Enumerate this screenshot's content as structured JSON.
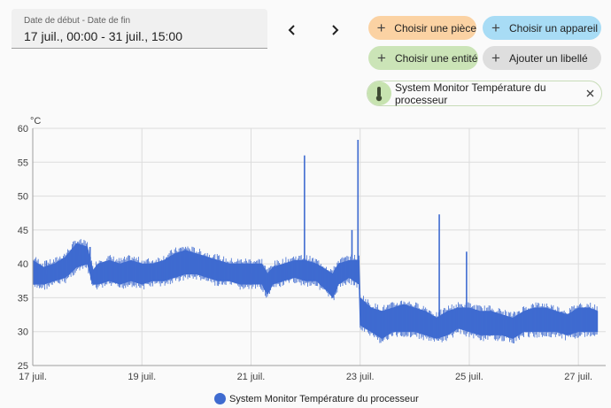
{
  "date_range": {
    "label": "Date de début - Date de fin",
    "value": "17 juil., 00:00 - 31 juil., 15:00"
  },
  "filters": {
    "area": "Choisir une pièce",
    "device": "Choisir un appareil",
    "entity": "Choisir une entité",
    "label": "Ajouter un libellé"
  },
  "selected_entity": {
    "name": "System Monitor Température du processeur",
    "icon": "thermometer-icon"
  },
  "colors": {
    "series": "#3f6bd0",
    "grid": "#dcdcdc"
  },
  "chart_data": {
    "type": "line",
    "ylabel": "°C",
    "ylim": [
      25,
      60
    ],
    "yticks": [
      25,
      30,
      35,
      40,
      45,
      50,
      55,
      60
    ],
    "xlim": [
      17,
      27.5
    ],
    "xticks": [
      {
        "value": 17,
        "label": "17 juil."
      },
      {
        "value": 19,
        "label": "19 juil."
      },
      {
        "value": 21,
        "label": "21 juil."
      },
      {
        "value": 23,
        "label": "23 juil."
      },
      {
        "value": 25,
        "label": "25 juil."
      },
      {
        "value": 27,
        "label": "27 juil."
      }
    ],
    "grid": true,
    "legend_position": "bottom-center",
    "series": [
      {
        "name": "System Monitor Température du processeur",
        "band": [
          [
            17.0,
            37.0,
            40.5
          ],
          [
            17.2,
            37.0,
            39.5
          ],
          [
            17.4,
            37.5,
            40.0
          ],
          [
            17.6,
            38.0,
            41.0
          ],
          [
            17.8,
            39.5,
            43.0
          ],
          [
            18.0,
            40.0,
            42.5
          ],
          [
            18.1,
            37.0,
            39.0
          ],
          [
            18.2,
            37.0,
            40.0
          ],
          [
            18.4,
            37.5,
            40.5
          ],
          [
            18.6,
            37.0,
            40.0
          ],
          [
            18.8,
            37.5,
            40.5
          ],
          [
            19.0,
            37.0,
            40.0
          ],
          [
            19.2,
            37.5,
            40.0
          ],
          [
            19.4,
            37.5,
            40.5
          ],
          [
            19.6,
            38.0,
            41.5
          ],
          [
            19.8,
            38.5,
            42.0
          ],
          [
            20.0,
            38.5,
            41.5
          ],
          [
            20.2,
            38.0,
            41.0
          ],
          [
            20.4,
            37.5,
            40.5
          ],
          [
            20.6,
            37.5,
            40.0
          ],
          [
            20.8,
            37.0,
            40.0
          ],
          [
            21.0,
            37.0,
            40.0
          ],
          [
            21.2,
            37.0,
            40.0
          ],
          [
            21.3,
            35.5,
            38.5
          ],
          [
            21.4,
            37.0,
            39.5
          ],
          [
            21.6,
            37.5,
            40.0
          ],
          [
            21.8,
            38.0,
            40.5
          ],
          [
            22.0,
            37.5,
            40.5
          ],
          [
            22.2,
            37.5,
            40.0
          ],
          [
            22.4,
            36.0,
            39.0
          ],
          [
            22.5,
            35.0,
            38.5
          ],
          [
            22.6,
            37.0,
            40.0
          ],
          [
            22.8,
            38.0,
            40.5
          ],
          [
            22.98,
            37.0,
            40.5
          ],
          [
            23.0,
            31.0,
            35.0
          ],
          [
            23.2,
            30.0,
            33.5
          ],
          [
            23.4,
            29.0,
            33.0
          ],
          [
            23.6,
            30.0,
            33.5
          ],
          [
            23.8,
            30.0,
            34.0
          ],
          [
            24.0,
            30.0,
            33.5
          ],
          [
            24.2,
            29.5,
            33.0
          ],
          [
            24.4,
            29.0,
            32.0
          ],
          [
            24.6,
            29.5,
            33.0
          ],
          [
            24.8,
            30.5,
            33.5
          ],
          [
            25.0,
            30.0,
            33.5
          ],
          [
            25.2,
            29.5,
            33.0
          ],
          [
            25.4,
            29.5,
            33.0
          ],
          [
            25.6,
            29.5,
            32.5
          ],
          [
            25.8,
            29.0,
            32.0
          ],
          [
            26.0,
            30.0,
            33.0
          ],
          [
            26.2,
            30.0,
            33.5
          ],
          [
            26.4,
            30.0,
            33.5
          ],
          [
            26.6,
            30.0,
            33.0
          ],
          [
            26.8,
            29.5,
            32.5
          ],
          [
            27.0,
            30.0,
            33.5
          ],
          [
            27.2,
            30.0,
            33.5
          ],
          [
            27.35,
            30.0,
            33.0
          ]
        ],
        "spikes": [
          [
            17.25,
            40.5
          ],
          [
            17.85,
            43.0
          ],
          [
            18.05,
            42.5
          ],
          [
            21.0,
            39.5
          ],
          [
            21.98,
            56.0
          ],
          [
            22.85,
            45.0
          ],
          [
            22.96,
            58.3
          ],
          [
            24.45,
            47.3
          ],
          [
            24.95,
            41.8
          ]
        ]
      }
    ]
  }
}
